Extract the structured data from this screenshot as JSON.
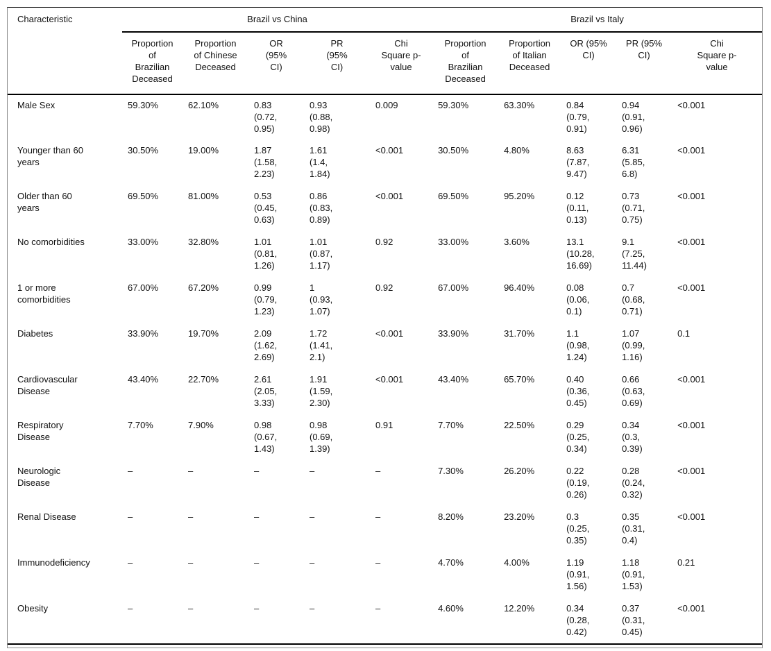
{
  "colors": {
    "background": "#ffffff",
    "text": "#111111",
    "rule": "#000000",
    "outer_border": "#8a8a8a"
  },
  "table": {
    "characteristic_header": "Characteristic",
    "groups": [
      {
        "label": "Brazil vs China"
      },
      {
        "label": "Brazil vs Italy"
      }
    ],
    "sub_headers": [
      "Proportion of Brazilian Deceased",
      "Proportion of Chinese Deceased",
      "OR (95% CI)",
      "PR (95% CI)",
      "Chi Square p-value",
      "Proportion of Brazilian Deceased",
      "Proportion of Italian Deceased",
      "OR (95% CI)",
      "PR (95% CI)",
      "Chi Square p-value"
    ],
    "rows": [
      {
        "label": "Male Sex",
        "cells": [
          "59.30%",
          "62.10%",
          "0.83 (0.72, 0.95)",
          "0.93 (0.88, 0.98)",
          "0.009",
          "59.30%",
          "63.30%",
          "0.84 (0.79, 0.91)",
          "0.94 (0.91, 0.96)",
          "<0.001"
        ]
      },
      {
        "label": "Younger than 60 years",
        "cells": [
          "30.50%",
          "19.00%",
          "1.87 (1.58, 2.23)",
          "1.61 (1.4, 1.84)",
          "<0.001",
          "30.50%",
          "4.80%",
          "8.63 (7.87, 9.47)",
          "6.31 (5.85, 6.8)",
          "<0.001"
        ]
      },
      {
        "label": "Older than 60 years",
        "cells": [
          "69.50%",
          "81.00%",
          "0.53 (0.45, 0.63)",
          "0.86 (0.83, 0.89)",
          "<0.001",
          "69.50%",
          "95.20%",
          "0.12 (0.11, 0.13)",
          "0.73 (0.71, 0.75)",
          "<0.001"
        ]
      },
      {
        "label": "No comorbidities",
        "cells": [
          "33.00%",
          "32.80%",
          "1.01 (0.81, 1.26)",
          "1.01 (0.87, 1.17)",
          "0.92",
          "33.00%",
          "3.60%",
          "13.1 (10.28, 16.69)",
          "9.1 (7.25, 11.44)",
          "<0.001"
        ]
      },
      {
        "label": "1 or more comorbidities",
        "cells": [
          "67.00%",
          "67.20%",
          "0.99 (0.79, 1.23)",
          "1 (0.93, 1.07)",
          "0.92",
          "67.00%",
          "96.40%",
          "0.08 (0.06, 0.1)",
          "0.7 (0.68, 0.71)",
          "<0.001"
        ]
      },
      {
        "label": "Diabetes",
        "cells": [
          "33.90%",
          "19.70%",
          "2.09 (1.62, 2.69)",
          "1.72 (1.41, 2.1)",
          "<0.001",
          "33.90%",
          "31.70%",
          "1.1 (0.98, 1.24)",
          "1.07 (0.99, 1.16)",
          "0.1"
        ]
      },
      {
        "label": "Cardiovascular Disease",
        "cells": [
          "43.40%",
          "22.70%",
          "2.61 (2.05, 3.33)",
          "1.91 (1.59, 2.30)",
          "<0.001",
          "43.40%",
          "65.70%",
          "0.40 (0.36, 0.45)",
          "0.66 (0.63, 0.69)",
          "<0.001"
        ]
      },
      {
        "label": "Respiratory Disease",
        "cells": [
          "7.70%",
          "7.90%",
          "0.98 (0.67, 1.43)",
          "0.98 (0.69, 1.39)",
          "0.91",
          "7.70%",
          "22.50%",
          "0.29 (0.25, 0.34)",
          "0.34 (0.3, 0.39)",
          "<0.001"
        ]
      },
      {
        "label": "Neurologic Disease",
        "cells": [
          "–",
          "–",
          "–",
          "–",
          "–",
          "7.30%",
          "26.20%",
          "0.22 (0.19, 0.26)",
          "0.28 (0.24, 0.32)",
          "<0.001"
        ]
      },
      {
        "label": "Renal Disease",
        "cells": [
          "–",
          "–",
          "–",
          "–",
          "–",
          "8.20%",
          "23.20%",
          "0.3 (0.25, 0.35)",
          "0.35 (0.31, 0.4)",
          "<0.001"
        ]
      },
      {
        "label": "Immunodeficiency",
        "cells": [
          "–",
          "–",
          "–",
          "–",
          "–",
          "4.70%",
          "4.00%",
          "1.19 (0.91, 1.56)",
          "1.18 (0.91, 1.53)",
          "0.21"
        ]
      },
      {
        "label": "Obesity",
        "cells": [
          "–",
          "–",
          "–",
          "–",
          "–",
          "4.60%",
          "12.20%",
          "0.34 (0.28, 0.42)",
          "0.37 (0.31, 0.45)",
          "<0.001"
        ]
      }
    ]
  }
}
